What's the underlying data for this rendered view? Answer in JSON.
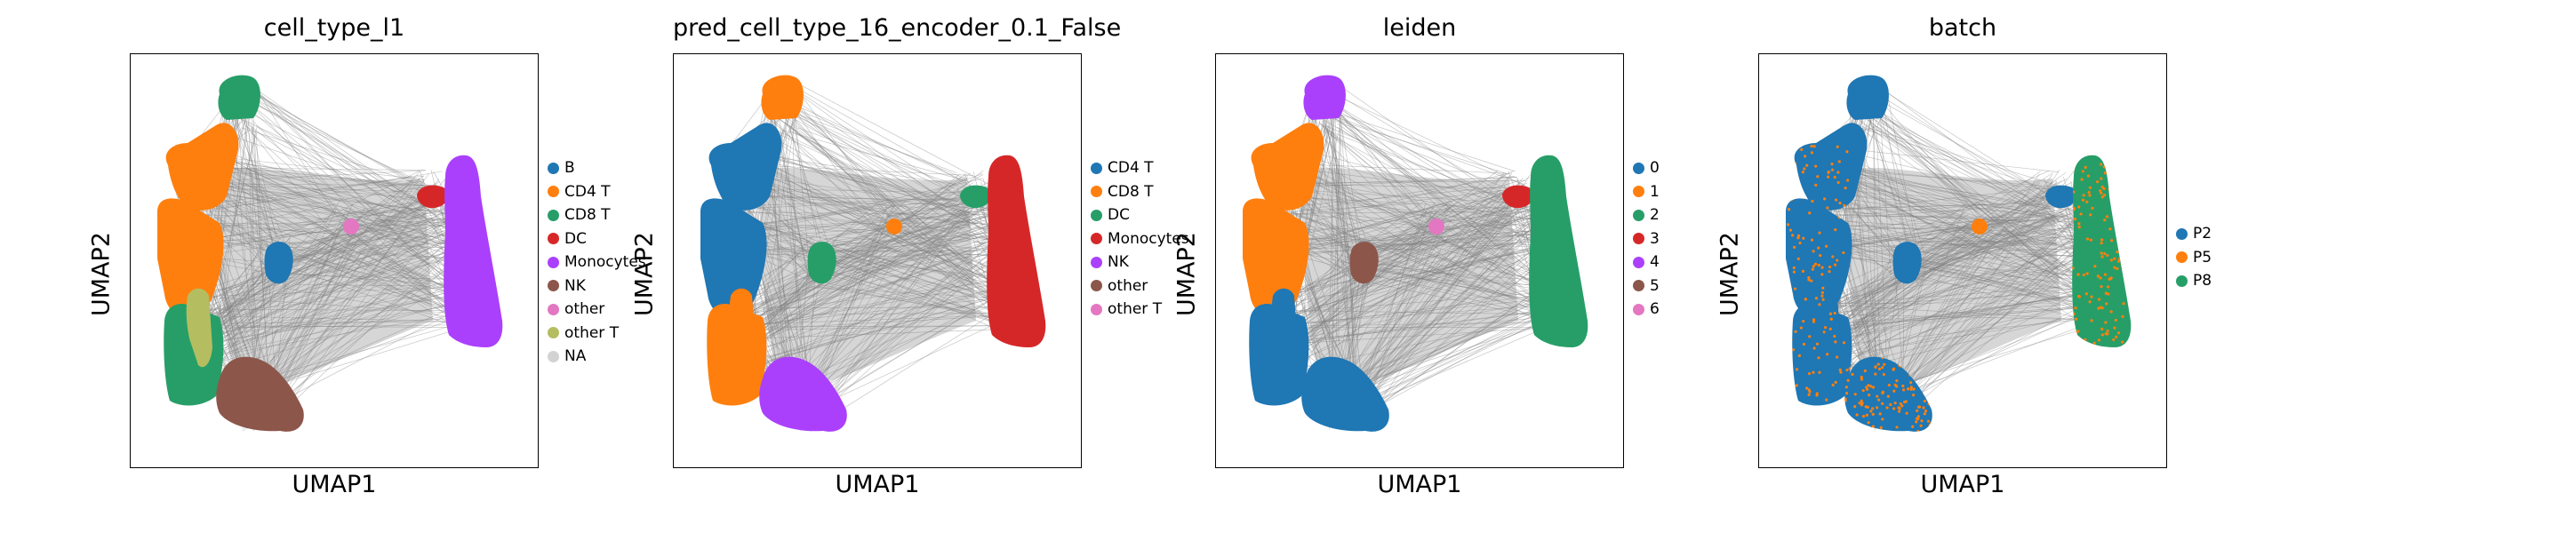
{
  "chart_data": [
    {
      "type": "scatter",
      "title": "cell_type_l1",
      "xlabel": "UMAP1",
      "ylabel": "UMAP2",
      "grid": false,
      "legend_position": "right",
      "legend": [
        {
          "label": "B",
          "color": "#1f77b4"
        },
        {
          "label": "CD4 T",
          "color": "#ff7f0e"
        },
        {
          "label": "CD8 T",
          "color": "#279e68"
        },
        {
          "label": "DC",
          "color": "#d62728"
        },
        {
          "label": "Monocytes",
          "color": "#aa40fc"
        },
        {
          "label": "NK",
          "color": "#8c564b"
        },
        {
          "label": "other",
          "color": "#e377c2"
        },
        {
          "label": "other T",
          "color": "#b5bd61"
        },
        {
          "label": "NA",
          "color": "#d3d3d3"
        }
      ],
      "regions": {
        "top_lobe": "CD8 T",
        "left_upper": "CD4 T",
        "left_mid": "CD4 T",
        "left_lower": "CD8 T",
        "left_strip": "other T",
        "bottom_blob": "NK",
        "center_small": "B",
        "center_node": "other",
        "right_upper": "DC",
        "right_main": "Monocytes"
      }
    },
    {
      "type": "scatter",
      "title": "pred_cell_type_16_encoder_0.1_False",
      "xlabel": "UMAP1",
      "ylabel": "UMAP2",
      "grid": false,
      "legend_position": "right",
      "legend": [
        {
          "label": "CD4 T",
          "color": "#1f77b4"
        },
        {
          "label": "CD8 T",
          "color": "#ff7f0e"
        },
        {
          "label": "DC",
          "color": "#279e68"
        },
        {
          "label": "Monocytes",
          "color": "#d62728"
        },
        {
          "label": "NK",
          "color": "#aa40fc"
        },
        {
          "label": "other",
          "color": "#8c564b"
        },
        {
          "label": "other T",
          "color": "#e377c2"
        }
      ],
      "regions": {
        "top_lobe": "CD8 T",
        "left_upper": "CD4 T",
        "left_mid": "CD4 T",
        "left_lower": "CD8 T",
        "left_strip": "CD8 T",
        "bottom_blob": "NK",
        "center_small": "DC",
        "center_node": "CD8 T",
        "right_upper": "DC",
        "right_main": "Monocytes"
      }
    },
    {
      "type": "scatter",
      "title": "leiden",
      "xlabel": "UMAP1",
      "ylabel": "UMAP2",
      "grid": false,
      "legend_position": "right",
      "legend": [
        {
          "label": "0",
          "color": "#1f77b4"
        },
        {
          "label": "1",
          "color": "#ff7f0e"
        },
        {
          "label": "2",
          "color": "#279e68"
        },
        {
          "label": "3",
          "color": "#d62728"
        },
        {
          "label": "4",
          "color": "#aa40fc"
        },
        {
          "label": "5",
          "color": "#8c564b"
        },
        {
          "label": "6",
          "color": "#e377c2"
        }
      ],
      "regions": {
        "top_lobe": "4",
        "left_upper": "1",
        "left_mid": "1",
        "left_lower": "0",
        "left_strip": "0",
        "bottom_blob": "0",
        "center_small": "5",
        "center_node": "6",
        "right_upper": "3",
        "right_main": "2"
      }
    },
    {
      "type": "scatter",
      "title": "batch",
      "xlabel": "UMAP1",
      "ylabel": "UMAP2",
      "grid": false,
      "legend_position": "right",
      "legend": [
        {
          "label": "P2",
          "color": "#1f77b4"
        },
        {
          "label": "P5",
          "color": "#ff7f0e"
        },
        {
          "label": "P8",
          "color": "#279e68"
        }
      ],
      "regions": {
        "top_lobe": "P2",
        "left_upper": "P2",
        "left_mid": "P2",
        "left_lower": "P2",
        "left_strip": "P2",
        "bottom_blob": "P2",
        "center_small": "P2",
        "center_node": "P5",
        "right_upper": "P2",
        "right_main": "P8"
      },
      "speckle": {
        "color": "#ff7f0e"
      }
    }
  ]
}
